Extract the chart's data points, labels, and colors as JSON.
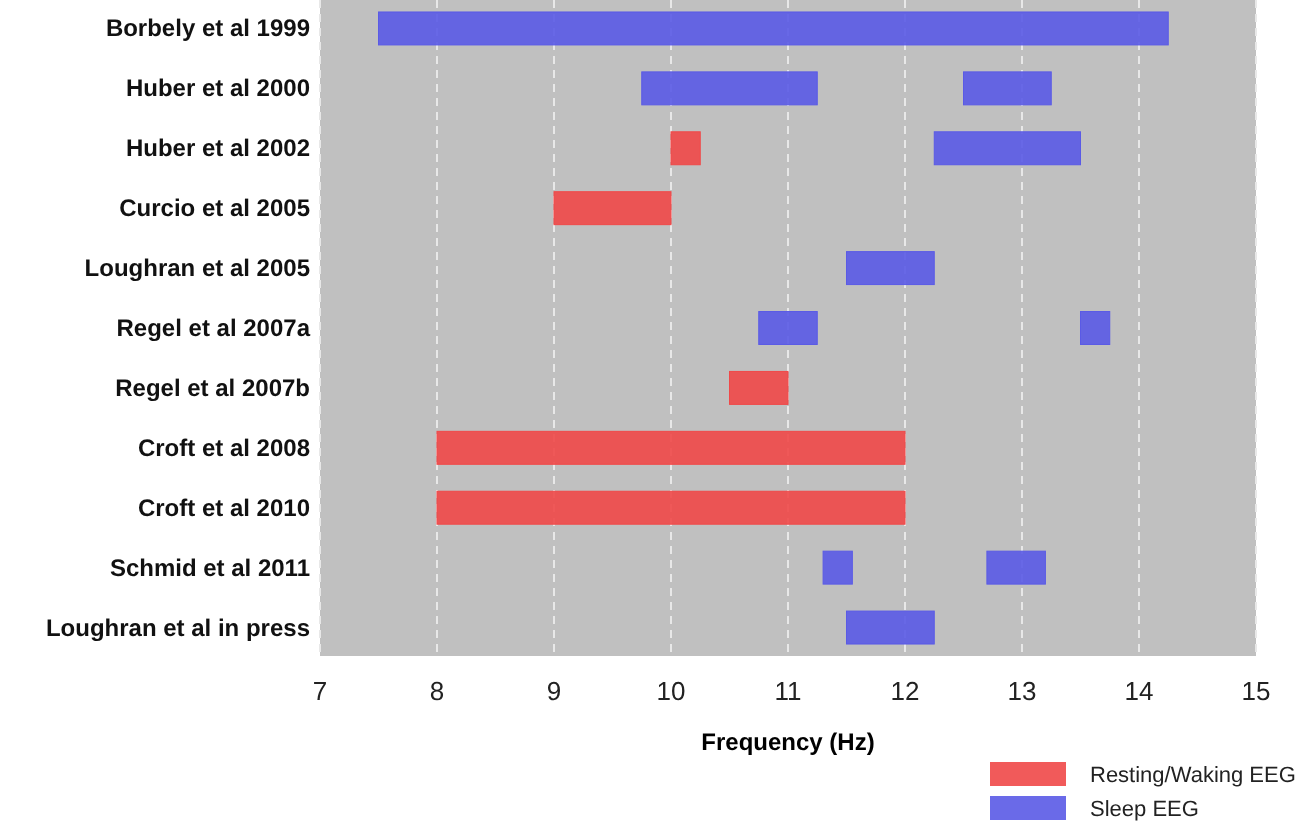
{
  "chart_data": {
    "type": "bar",
    "orientation": "horizontal",
    "xlabel": "Frequency (Hz)",
    "categories": [
      "Borbely et al 1999",
      "Huber et al 2000",
      "Huber et al 2002",
      "Curcio et al 2005",
      "Loughran et al 2005",
      "Regel et al 2007a",
      "Regel et al 2007b",
      "Croft et al 2008",
      "Croft et al 2010",
      "Schmid et al 2011",
      "Loughran et al in press"
    ],
    "series": [
      {
        "name": "Resting/Waking EEG",
        "color": "#f04848",
        "base": [
          null,
          null,
          10,
          9,
          null,
          null,
          10.5,
          8,
          8,
          null,
          null
        ],
        "values": [
          null,
          null,
          0.25,
          1,
          null,
          null,
          0.5,
          4,
          4,
          null,
          null
        ]
      },
      {
        "name": "Sleep EEG",
        "color": "#5a5ae6",
        "base": [
          7.5,
          9.75,
          12.25,
          null,
          11.5,
          10.75,
          null,
          null,
          null,
          11.3,
          11.5
        ],
        "values": [
          6.75,
          1.5,
          1.25,
          null,
          0.75,
          0.5,
          null,
          null,
          null,
          0.25,
          0.75
        ]
      },
      {
        "color": "#5a5ae6",
        "base": [
          null,
          12.5,
          null,
          null,
          null,
          13.5,
          null,
          null,
          null,
          12.7,
          null
        ],
        "values": [
          null,
          0.75,
          null,
          null,
          null,
          0.25,
          null,
          null,
          null,
          0.5,
          null
        ]
      }
    ],
    "xlim": [
      7,
      15
    ],
    "xticks": [
      7,
      8,
      9,
      10,
      11,
      12,
      13,
      14,
      15
    ],
    "grid": "x",
    "legend": "bottom right"
  }
}
